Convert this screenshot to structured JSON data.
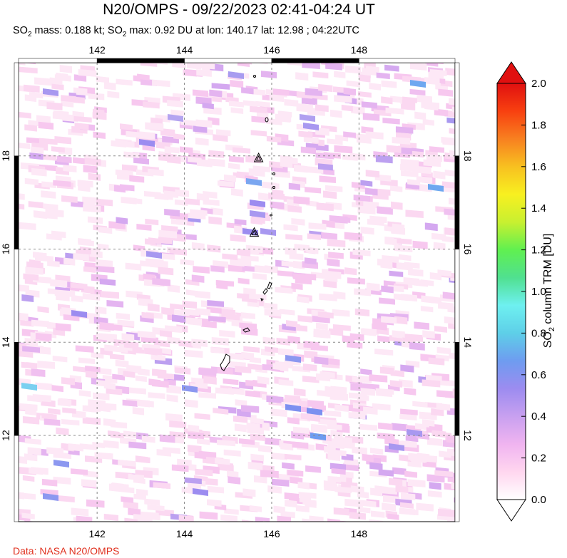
{
  "title": "N20/OMPS - 09/22/2023 02:41-04:24 UT",
  "subtitle": {
    "mass_prefix": "SO",
    "mass_sub": "2",
    "mass_text": " mass: 0.188 kt; SO",
    "max_sub": "2",
    "max_text": " max: 0.92 DU at lon: 140.17 lat: 12.98 ; 04:22UTC"
  },
  "credit": "Data: NASA N20/OMPS",
  "map": {
    "lon_ticks": [
      "142",
      "144",
      "146",
      "148"
    ],
    "lat_ticks": [
      "18",
      "16",
      "14",
      "12"
    ],
    "lon_range": [
      140.2,
      150.2
    ],
    "lat_range": [
      10.15,
      20.0
    ],
    "volcano_markers": [
      {
        "lon": 145.7,
        "lat": 17.95
      },
      {
        "lon": 145.6,
        "lat": 16.35
      }
    ]
  },
  "colorbar": {
    "title_prefix": "SO",
    "title_sub": "2",
    "title_suffix": " column TRM [DU]",
    "ticks": [
      "2.0",
      "1.8",
      "1.6",
      "1.4",
      "1.2",
      "1.0",
      "0.8",
      "0.6",
      "0.4",
      "0.2",
      "0.0"
    ],
    "min": 0.0,
    "max": 2.0,
    "colors": [
      "#ffffff",
      "#ffd6ef",
      "#f0b4f0",
      "#c8a0f0",
      "#9c8cf0",
      "#6e9cf0",
      "#5ecfe8",
      "#6ef0f0",
      "#50e090",
      "#60f050",
      "#c8f030",
      "#f8f020",
      "#f8c020",
      "#f88020",
      "#f84010",
      "#e01010"
    ]
  }
}
